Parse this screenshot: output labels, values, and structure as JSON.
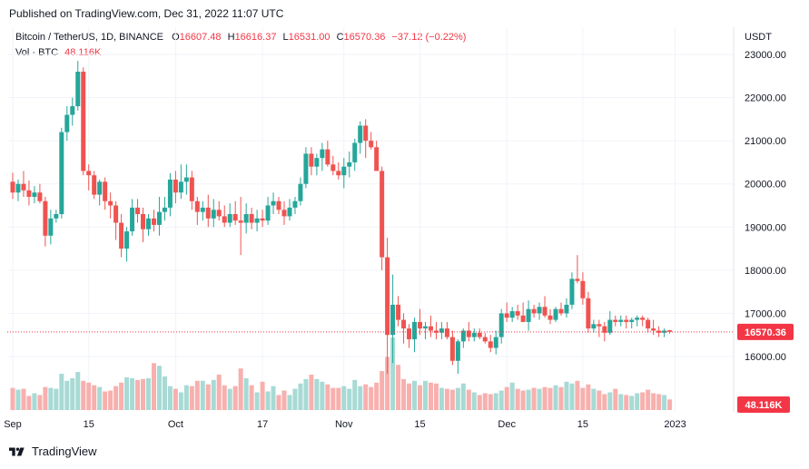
{
  "header": {
    "published": "Published on TradingView.com, Dec 31, 2022 11:07 UTC"
  },
  "legend": {
    "symbol": "Bitcoin / TetherUS, 1D, BINANCE",
    "open_label": "O",
    "open": "16607.48",
    "high_label": "H",
    "high": "16616.37",
    "low_label": "L",
    "low": "16531.00",
    "close_label": "C",
    "close": "16570.36",
    "change": "−37.12 (−0.22%)",
    "vol_label": "Vol · BTC",
    "vol_value": "48.116K"
  },
  "footer": {
    "brand": "TradingView"
  },
  "colors": {
    "up": "#26a69a",
    "down": "#ef5350",
    "vol_up": "#a7dad5",
    "vol_down": "#f7b0ae",
    "price_badge": "#f23645"
  },
  "chart_data": {
    "type": "candlestick",
    "title": "Bitcoin / TetherUS, 1D, BINANCE",
    "currency_label": "USDT",
    "ylim": [
      15200,
      23300
    ],
    "yticks": [
      16000,
      17000,
      18000,
      19000,
      20000,
      21000,
      22000,
      23000
    ],
    "ytick_labels": [
      "16000.00",
      "17000.00",
      "18000.00",
      "19000.00",
      "20000.00",
      "21000.00",
      "22000.00",
      "23000.00"
    ],
    "xticks": [
      {
        "label": "Sep",
        "index": 0
      },
      {
        "label": "15",
        "index": 14
      },
      {
        "label": "Oct",
        "index": 30
      },
      {
        "label": "17",
        "index": 46
      },
      {
        "label": "Nov",
        "index": 61
      },
      {
        "label": "15",
        "index": 75
      },
      {
        "label": "Dec",
        "index": 91
      },
      {
        "label": "15",
        "index": 105
      },
      {
        "label": "2023",
        "index": 122
      }
    ],
    "last_price_label": "16570.36",
    "last_volume_label": "48.116K",
    "candles": [
      [
        20050,
        20260,
        19650,
        19800
      ],
      [
        19800,
        20100,
        19600,
        20000
      ],
      [
        20000,
        20300,
        19700,
        19850
      ],
      [
        19850,
        20080,
        19500,
        19700
      ],
      [
        19700,
        19950,
        19550,
        19800
      ],
      [
        19800,
        20000,
        19550,
        19600
      ],
      [
        19600,
        19700,
        18550,
        18800
      ],
      [
        18800,
        19400,
        18600,
        19200
      ],
      [
        19200,
        19400,
        19100,
        19300
      ],
      [
        19300,
        21300,
        19200,
        21200
      ],
      [
        21200,
        21800,
        21000,
        21600
      ],
      [
        21600,
        22000,
        21350,
        21800
      ],
      [
        21800,
        22850,
        21700,
        22600
      ],
      [
        22600,
        22700,
        20200,
        20300
      ],
      [
        20300,
        20450,
        19850,
        20200
      ],
      [
        20200,
        20300,
        19650,
        19750
      ],
      [
        19750,
        20100,
        19500,
        20050
      ],
      [
        20050,
        20150,
        19400,
        19600
      ],
      [
        19600,
        19800,
        19200,
        19500
      ],
      [
        19500,
        19600,
        18700,
        19100
      ],
      [
        19100,
        19300,
        18300,
        18500
      ],
      [
        18500,
        19000,
        18200,
        18900
      ],
      [
        18900,
        19650,
        18800,
        19450
      ],
      [
        19450,
        19650,
        19100,
        19300
      ],
      [
        19300,
        19450,
        18650,
        18950
      ],
      [
        18950,
        19300,
        18800,
        19200
      ],
      [
        19200,
        19400,
        18900,
        19050
      ],
      [
        19050,
        19700,
        18800,
        19350
      ],
      [
        19350,
        19700,
        19150,
        19450
      ],
      [
        19450,
        20250,
        19250,
        20100
      ],
      [
        20100,
        20300,
        19550,
        19800
      ],
      [
        19800,
        20450,
        19650,
        20050
      ],
      [
        20050,
        20450,
        19750,
        20150
      ],
      [
        20150,
        20300,
        19400,
        19600
      ],
      [
        19600,
        19700,
        19050,
        19350
      ],
      [
        19350,
        19600,
        19150,
        19450
      ],
      [
        19450,
        19750,
        19000,
        19200
      ],
      [
        19200,
        19650,
        19000,
        19400
      ],
      [
        19400,
        19600,
        19150,
        19250
      ],
      [
        19250,
        19500,
        19000,
        19100
      ],
      [
        19100,
        19550,
        19000,
        19300
      ],
      [
        19300,
        19600,
        19050,
        19150
      ],
      [
        19150,
        19700,
        18350,
        19100
      ],
      [
        19100,
        19550,
        18850,
        19300
      ],
      [
        19300,
        19450,
        18950,
        19100
      ],
      [
        19100,
        19400,
        18900,
        19200
      ],
      [
        19200,
        19400,
        19000,
        19150
      ],
      [
        19150,
        19700,
        19050,
        19500
      ],
      [
        19500,
        19800,
        19300,
        19600
      ],
      [
        19600,
        19700,
        19300,
        19400
      ],
      [
        19400,
        19600,
        19050,
        19250
      ],
      [
        19250,
        19650,
        19150,
        19450
      ],
      [
        19450,
        19700,
        19300,
        19600
      ],
      [
        19600,
        20150,
        19500,
        20000
      ],
      [
        20000,
        20850,
        19900,
        20700
      ],
      [
        20700,
        20850,
        20200,
        20400
      ],
      [
        20400,
        20700,
        20200,
        20600
      ],
      [
        20600,
        20950,
        20300,
        20800
      ],
      [
        20800,
        21000,
        20400,
        20450
      ],
      [
        20450,
        20650,
        20200,
        20300
      ],
      [
        20300,
        20500,
        20100,
        20200
      ],
      [
        20200,
        20600,
        19900,
        20400
      ],
      [
        20400,
        20750,
        20150,
        20500
      ],
      [
        20500,
        21050,
        20300,
        20950
      ],
      [
        20950,
        21450,
        20700,
        21350
      ],
      [
        21350,
        21500,
        20600,
        21000
      ],
      [
        21000,
        21200,
        20800,
        20850
      ],
      [
        20850,
        21000,
        20300,
        20300
      ],
      [
        20300,
        20400,
        18000,
        18300
      ],
      [
        18300,
        18750,
        15600,
        16500
      ],
      [
        16500,
        17900,
        15850,
        17200
      ],
      [
        17200,
        17400,
        16700,
        16850
      ],
      [
        16850,
        17000,
        16300,
        16650
      ],
      [
        16650,
        16750,
        16200,
        16400
      ],
      [
        16400,
        16900,
        16100,
        16800
      ],
      [
        16800,
        17100,
        16500,
        16650
      ],
      [
        16650,
        16800,
        16400,
        16700
      ],
      [
        16700,
        16950,
        16450,
        16600
      ],
      [
        16600,
        16800,
        16400,
        16550
      ],
      [
        16550,
        16800,
        16400,
        16650
      ],
      [
        16650,
        16800,
        16400,
        16450
      ],
      [
        16450,
        16600,
        15800,
        15900
      ],
      [
        15900,
        16400,
        15600,
        16350
      ],
      [
        16350,
        16650,
        16200,
        16600
      ],
      [
        16600,
        16800,
        16350,
        16450
      ],
      [
        16450,
        16650,
        16350,
        16550
      ],
      [
        16550,
        16650,
        16400,
        16450
      ],
      [
        16450,
        16550,
        16300,
        16350
      ],
      [
        16350,
        16500,
        16100,
        16200
      ],
      [
        16200,
        16600,
        16050,
        16450
      ],
      [
        16450,
        17100,
        16300,
        17000
      ],
      [
        17000,
        17250,
        16800,
        16900
      ],
      [
        16900,
        17150,
        16800,
        17050
      ],
      [
        17050,
        17200,
        16850,
        16950
      ],
      [
        16950,
        17250,
        16800,
        16800
      ],
      [
        16800,
        17300,
        16600,
        17100
      ],
      [
        17100,
        17200,
        16900,
        17000
      ],
      [
        17000,
        17250,
        16850,
        17150
      ],
      [
        17150,
        17400,
        16900,
        16950
      ],
      [
        16950,
        17100,
        16750,
        16850
      ],
      [
        16850,
        17150,
        16800,
        17100
      ],
      [
        17100,
        17250,
        16950,
        17000
      ],
      [
        17000,
        17350,
        16900,
        17200
      ],
      [
        17200,
        17950,
        17100,
        17800
      ],
      [
        17800,
        18350,
        17700,
        17750
      ],
      [
        17750,
        17950,
        17200,
        17350
      ],
      [
        17350,
        17500,
        16550,
        16650
      ],
      [
        16650,
        16850,
        16550,
        16750
      ],
      [
        16750,
        16850,
        16450,
        16700
      ],
      [
        16700,
        16800,
        16350,
        16550
      ],
      [
        16550,
        17050,
        16500,
        16850
      ],
      [
        16850,
        16950,
        16700,
        16800
      ],
      [
        16800,
        16950,
        16700,
        16850
      ],
      [
        16850,
        16950,
        16650,
        16800
      ],
      [
        16800,
        16900,
        16650,
        16850
      ],
      [
        16850,
        16950,
        16700,
        16900
      ],
      [
        16900,
        16950,
        16700,
        16850
      ],
      [
        16850,
        16900,
        16550,
        16650
      ],
      [
        16650,
        16850,
        16500,
        16600
      ],
      [
        16600,
        16700,
        16450,
        16550
      ],
      [
        16550,
        16650,
        16450,
        16600
      ],
      [
        16607.48,
        16616.37,
        16531.0,
        16570.36
      ]
    ],
    "volumes": [
      25,
      23,
      24,
      16,
      19,
      17,
      26,
      25,
      24,
      41,
      33,
      36,
      43,
      33,
      31,
      28,
      26,
      21,
      22,
      27,
      31,
      37,
      36,
      34,
      35,
      36,
      53,
      50,
      38,
      27,
      24,
      20,
      28,
      27,
      33,
      33,
      29,
      34,
      40,
      28,
      24,
      27,
      47,
      36,
      28,
      20,
      32,
      21,
      27,
      17,
      22,
      17,
      24,
      30,
      35,
      40,
      35,
      32,
      29,
      25,
      25,
      27,
      24,
      34,
      27,
      29,
      26,
      31,
      44,
      60,
      82,
      51,
      35,
      30,
      33,
      28,
      33,
      31,
      30,
      25,
      24,
      23,
      25,
      30,
      23,
      20,
      17,
      19,
      18,
      19,
      22,
      26,
      31,
      24,
      22,
      23,
      25,
      24,
      26,
      25,
      28,
      26,
      32,
      30,
      33,
      25,
      29,
      24,
      22,
      18,
      20,
      24,
      18,
      17,
      16,
      19,
      20,
      23,
      19,
      18,
      17,
      12
    ],
    "volume_max": 82
  }
}
